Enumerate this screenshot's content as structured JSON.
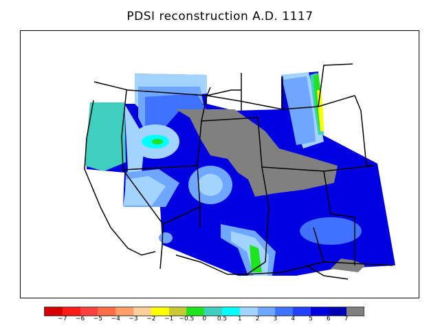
{
  "title": "PDSI reconstruction A.D. 1117",
  "legend": {
    "colors": [
      "#d60000",
      "#ff1a1a",
      "#ff4040",
      "#ff6b45",
      "#ff9d6b",
      "#ffcf9a",
      "#ffff00",
      "#c8c832",
      "#1ee41e",
      "#3fcfbf",
      "#00ffff",
      "#a3d3ff",
      "#6fa6ff",
      "#3f72ff",
      "#2440ff",
      "#0000e0",
      "#0000b4",
      "#808080"
    ],
    "tick_labels": [
      "−7",
      "−6",
      "−5",
      "−4",
      "−3",
      "−2",
      "−1",
      "−0.5",
      "0",
      "0.5",
      "1",
      "2",
      "3",
      "4",
      "5",
      "6",
      "7"
    ]
  },
  "map": {
    "colors": {
      "no_data": "#808080",
      "darkest_blue": "#0000e0",
      "blue": "#2440ff",
      "mid_blue": "#3f72ff",
      "light_blue": "#6fa6ff",
      "pale_blue": "#a3d3ff",
      "teal": "#3fcfbf",
      "cyan": "#00ffff",
      "green": "#1ee41e",
      "yellow": "#ffff00"
    }
  }
}
